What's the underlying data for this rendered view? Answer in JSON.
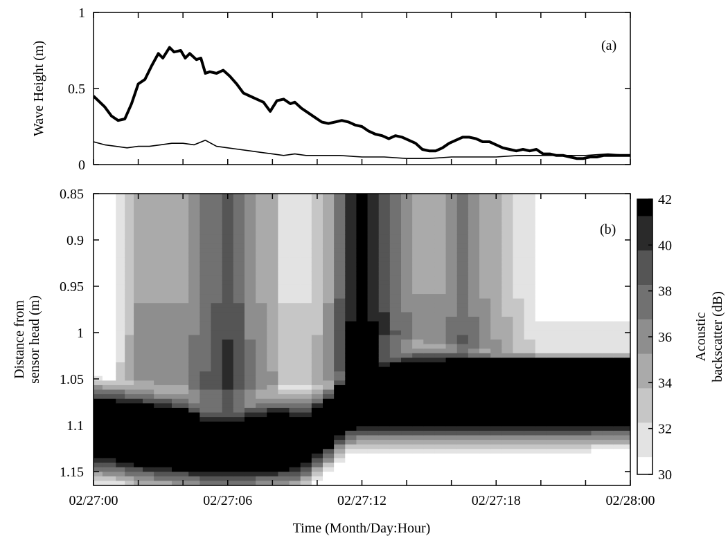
{
  "figure": {
    "xlabel": "Time (Month/Day:Hour)",
    "xticks": [
      "02/27:00",
      "02/27:06",
      "02/27:12",
      "02/27:18",
      "02/28:00"
    ]
  },
  "chart_data": [
    {
      "type": "line",
      "panel_label": "(a)",
      "ylabel": "Wave Height (m)",
      "xlim": [
        0,
        24
      ],
      "ylim": [
        0,
        1
      ],
      "yticks": [
        "0",
        "0.5",
        "1"
      ],
      "series": [
        {
          "style": "thick",
          "color": "#000000",
          "x": [
            0,
            0.5,
            0.8,
            1.1,
            1.4,
            1.7,
            2.0,
            2.3,
            2.6,
            2.9,
            3.1,
            3.4,
            3.6,
            3.9,
            4.1,
            4.3,
            4.6,
            4.8,
            5.0,
            5.2,
            5.5,
            5.8,
            6.1,
            6.4,
            6.7,
            7.0,
            7.3,
            7.6,
            7.9,
            8.2,
            8.5,
            8.8,
            9.0,
            9.3,
            9.6,
            9.9,
            10.2,
            10.5,
            10.8,
            11.1,
            11.4,
            11.7,
            12.0,
            12.3,
            12.6,
            12.9,
            13.2,
            13.5,
            13.8,
            14.1,
            14.4,
            14.7,
            15.0,
            15.3,
            15.6,
            15.9,
            16.2,
            16.5,
            16.8,
            17.1,
            17.4,
            17.7,
            18.0,
            18.3,
            18.6,
            18.9,
            19.2,
            19.5,
            19.8,
            20.1,
            20.4,
            20.7,
            21.0,
            21.3,
            21.6,
            21.9,
            22.2,
            22.5,
            22.8,
            23.1,
            23.4,
            23.7,
            24.0
          ],
          "y": [
            0.45,
            0.38,
            0.32,
            0.29,
            0.3,
            0.4,
            0.53,
            0.56,
            0.65,
            0.73,
            0.7,
            0.77,
            0.74,
            0.75,
            0.7,
            0.73,
            0.69,
            0.7,
            0.6,
            0.61,
            0.6,
            0.62,
            0.58,
            0.53,
            0.47,
            0.45,
            0.43,
            0.41,
            0.35,
            0.42,
            0.43,
            0.4,
            0.41,
            0.37,
            0.34,
            0.31,
            0.28,
            0.27,
            0.28,
            0.29,
            0.28,
            0.26,
            0.25,
            0.22,
            0.2,
            0.19,
            0.17,
            0.19,
            0.18,
            0.16,
            0.14,
            0.1,
            0.09,
            0.09,
            0.11,
            0.14,
            0.16,
            0.18,
            0.18,
            0.17,
            0.15,
            0.15,
            0.13,
            0.11,
            0.1,
            0.09,
            0.1,
            0.09,
            0.1,
            0.07,
            0.07,
            0.06,
            0.06,
            0.05,
            0.04,
            0.04,
            0.05,
            0.05,
            0.06,
            0.06,
            0.06,
            0.06,
            0.06
          ]
        },
        {
          "style": "thin",
          "color": "#000000",
          "x": [
            0,
            0.5,
            1.0,
            1.5,
            2.0,
            2.5,
            3.0,
            3.5,
            4.0,
            4.5,
            5.0,
            5.5,
            6.0,
            6.5,
            7.0,
            7.5,
            8.0,
            8.5,
            9.0,
            9.5,
            10.0,
            11.0,
            12.0,
            13.0,
            14.0,
            15.0,
            16.0,
            17.0,
            18.0,
            19.0,
            20.0,
            21.0,
            22.0,
            23.0,
            24.0
          ],
          "y": [
            0.15,
            0.13,
            0.12,
            0.11,
            0.12,
            0.12,
            0.13,
            0.14,
            0.14,
            0.13,
            0.16,
            0.12,
            0.11,
            0.1,
            0.09,
            0.08,
            0.07,
            0.06,
            0.07,
            0.06,
            0.06,
            0.06,
            0.05,
            0.05,
            0.04,
            0.04,
            0.05,
            0.05,
            0.05,
            0.06,
            0.06,
            0.06,
            0.06,
            0.07,
            0.06
          ]
        }
      ]
    },
    {
      "type": "heatmap",
      "panel_label": "(b)",
      "ylabel": "Distance from\nsensor head (m)",
      "xlim": [
        0,
        24
      ],
      "ylim": [
        0.85,
        1.165
      ],
      "y_reversed": true,
      "yticks": [
        "0.85",
        "0.9",
        "0.95",
        "1",
        "1.05",
        "1.1",
        "1.15"
      ],
      "colorbar": {
        "label": "Acoustic\nbackscatter (dB)",
        "range": [
          30,
          42
        ],
        "ticks": [
          "30",
          "32",
          "34",
          "36",
          "38",
          "40",
          "42"
        ],
        "levels": [
          {
            "level": 30,
            "color": "#ffffff"
          },
          {
            "level": 31.5,
            "color": "#e3e3e3"
          },
          {
            "level": 33,
            "color": "#c6c6c6"
          },
          {
            "level": 34.5,
            "color": "#aaaaaa"
          },
          {
            "level": 36,
            "color": "#8e8e8e"
          },
          {
            "level": 37.5,
            "color": "#717171"
          },
          {
            "level": 39,
            "color": "#555555"
          },
          {
            "level": 40.5,
            "color": "#2a2a2a"
          },
          {
            "level": 42,
            "color": "#000000"
          }
        ]
      },
      "x": [
        0,
        0.8,
        1.2,
        1.6,
        2.0,
        2.4,
        3.0,
        4.0,
        4.5,
        5.0,
        5.5,
        6.0,
        6.5,
        7.0,
        7.5,
        8.0,
        8.5,
        9.0,
        9.5,
        10.0,
        10.5,
        11.0,
        11.5,
        12.0,
        12.5,
        13.0,
        13.5,
        14.0,
        14.5,
        15.0,
        15.5,
        16.0,
        16.5,
        17.0,
        17.5,
        18.0,
        18.5,
        19.0,
        19.5,
        20.0,
        20.5,
        21.0,
        21.5,
        22.0,
        22.5,
        23.0,
        23.5,
        24.0
      ],
      "y_profile": [
        0.85,
        0.9,
        0.95,
        1.0,
        1.03,
        1.045,
        1.06,
        1.075,
        1.09,
        1.11,
        1.125,
        1.14,
        1.155,
        1.165
      ],
      "background_db": [
        29,
        29,
        31,
        33,
        35,
        35,
        35,
        35,
        36,
        37,
        38,
        39,
        38,
        36,
        35,
        34,
        32,
        32,
        32,
        33,
        35,
        38,
        41,
        42,
        41,
        39,
        37,
        36,
        35,
        35,
        35,
        36,
        37,
        36,
        35,
        34,
        33,
        32,
        31,
        30,
        30,
        30,
        30,
        30,
        30,
        30,
        30,
        30
      ],
      "bed_top": [
        1.048,
        1.05,
        1.05,
        1.052,
        1.05,
        1.052,
        1.055,
        1.058,
        1.06,
        1.062,
        1.062,
        1.062,
        1.062,
        1.062,
        1.06,
        1.058,
        1.058,
        1.058,
        1.058,
        1.055,
        1.05,
        1.04,
        1.02,
        1.0,
        1.0,
        1.002,
        1.005,
        1.006,
        1.008,
        1.01,
        1.01,
        1.012,
        1.012,
        1.015,
        1.018,
        1.02,
        1.02,
        1.02,
        1.02,
        1.022,
        1.022,
        1.022,
        1.022,
        1.022,
        1.022,
        1.022,
        1.022,
        1.022
      ],
      "core_top": [
        1.075,
        1.075,
        1.076,
        1.078,
        1.08,
        1.08,
        1.082,
        1.085,
        1.09,
        1.096,
        1.1,
        1.1,
        1.098,
        1.095,
        1.092,
        1.09,
        1.09,
        1.092,
        1.095,
        1.085,
        1.075,
        1.06,
        1.05,
        1.04,
        1.04,
        1.038,
        1.036,
        1.035,
        1.033,
        1.032,
        1.032,
        1.03,
        1.03,
        1.03,
        1.03,
        1.03,
        1.03,
        1.03,
        1.03,
        1.03,
        1.03,
        1.03,
        1.03,
        1.03,
        1.03,
        1.03,
        1.03,
        1.03
      ],
      "core_bottom": [
        1.135,
        1.136,
        1.138,
        1.14,
        1.142,
        1.143,
        1.145,
        1.147,
        1.148,
        1.15,
        1.15,
        1.15,
        1.15,
        1.15,
        1.148,
        1.148,
        1.146,
        1.145,
        1.14,
        1.13,
        1.122,
        1.11,
        1.102,
        1.1,
        1.1,
        1.1,
        1.1,
        1.1,
        1.1,
        1.1,
        1.1,
        1.1,
        1.1,
        1.1,
        1.1,
        1.1,
        1.1,
        1.1,
        1.1,
        1.1,
        1.1,
        1.1,
        1.1,
        1.1,
        1.098,
        1.098,
        1.098,
        1.098
      ],
      "dark_column": {
        "x_start": 11.5,
        "x_end": 12.5,
        "db": 42
      }
    }
  ]
}
